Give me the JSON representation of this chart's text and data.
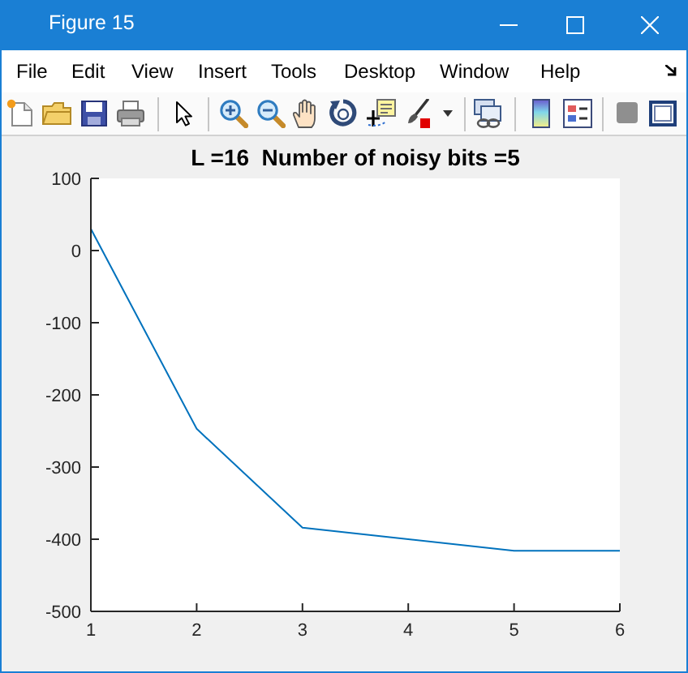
{
  "chart_data": {
    "type": "line",
    "title": "L =16  Number of noisy bits =5",
    "x": [
      1,
      2,
      3,
      4,
      5,
      6
    ],
    "series": [
      {
        "color": "#0072bd",
        "values": [
          30,
          -247,
          -384,
          -400,
          -416,
          -416
        ]
      }
    ],
    "xlim": [
      1,
      6
    ],
    "xticks": [
      1,
      2,
      3,
      4,
      5,
      6
    ],
    "ylim": [
      -500,
      100
    ],
    "yticks": [
      -500,
      -400,
      -300,
      -200,
      -100,
      0,
      100
    ],
    "annotations": [
      "Figure 15",
      "File",
      "Edit",
      "View",
      "Insert",
      "Tools",
      "Desktop",
      "Window",
      "Help"
    ]
  }
}
